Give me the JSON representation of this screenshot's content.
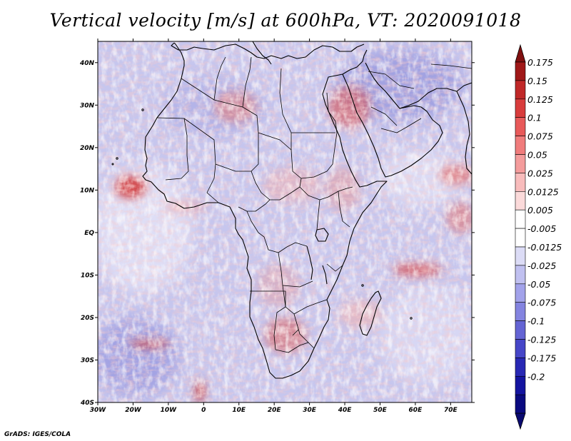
{
  "title": "Vertical velocity [m/s] at 600hPa, VT: 2020091018",
  "credit": "GrADS: IGES/COLA",
  "map": {
    "extent": {
      "lon_min": -30,
      "lon_max": 76,
      "lat_min": -40,
      "lat_max": 45
    },
    "lat_ticks": [
      {
        "lat": 40,
        "label": "40N"
      },
      {
        "lat": 30,
        "label": "30N"
      },
      {
        "lat": 20,
        "label": "20N"
      },
      {
        "lat": 10,
        "label": "10N"
      },
      {
        "lat": 0,
        "label": "EQ"
      },
      {
        "lat": -10,
        "label": "10S"
      },
      {
        "lat": -20,
        "label": "20S"
      },
      {
        "lat": -30,
        "label": "30S"
      },
      {
        "lat": -40,
        "label": "40S"
      }
    ],
    "lon_ticks": [
      {
        "lon": -30,
        "label": "30W"
      },
      {
        "lon": -20,
        "label": "20W"
      },
      {
        "lon": -10,
        "label": "10W"
      },
      {
        "lon": 0,
        "label": "0"
      },
      {
        "lon": 10,
        "label": "10E"
      },
      {
        "lon": 20,
        "label": "20E"
      },
      {
        "lon": 30,
        "label": "30E"
      },
      {
        "lon": 40,
        "label": "40E"
      },
      {
        "lon": 50,
        "label": "50E"
      },
      {
        "lon": 60,
        "label": "60E"
      },
      {
        "lon": 70,
        "label": "70E"
      }
    ]
  },
  "colorbar": {
    "levels": [
      "0.175",
      "0.15",
      "0.125",
      "0.1",
      "0.075",
      "0.05",
      "0.025",
      "0.0125",
      "0.005",
      "-0.005",
      "-0.0125",
      "-0.025",
      "-0.05",
      "-0.075",
      "-0.1",
      "-0.125",
      "-0.175",
      "-0.2"
    ],
    "colors": [
      "#a01818",
      "#c02828",
      "#d83c3c",
      "#e85a5a",
      "#f07c7c",
      "#f49c9c",
      "#f8bcbc",
      "#fbdada",
      "#ffffff",
      "#ffffff",
      "#dcdcf6",
      "#c0c0f0",
      "#a2a2ea",
      "#8484e0",
      "#6464d4",
      "#4646c8",
      "#2828b4",
      "#1414a0",
      "#0a0a80"
    ],
    "top_color": "#801010",
    "bottom_color": "#0a0a70"
  }
}
